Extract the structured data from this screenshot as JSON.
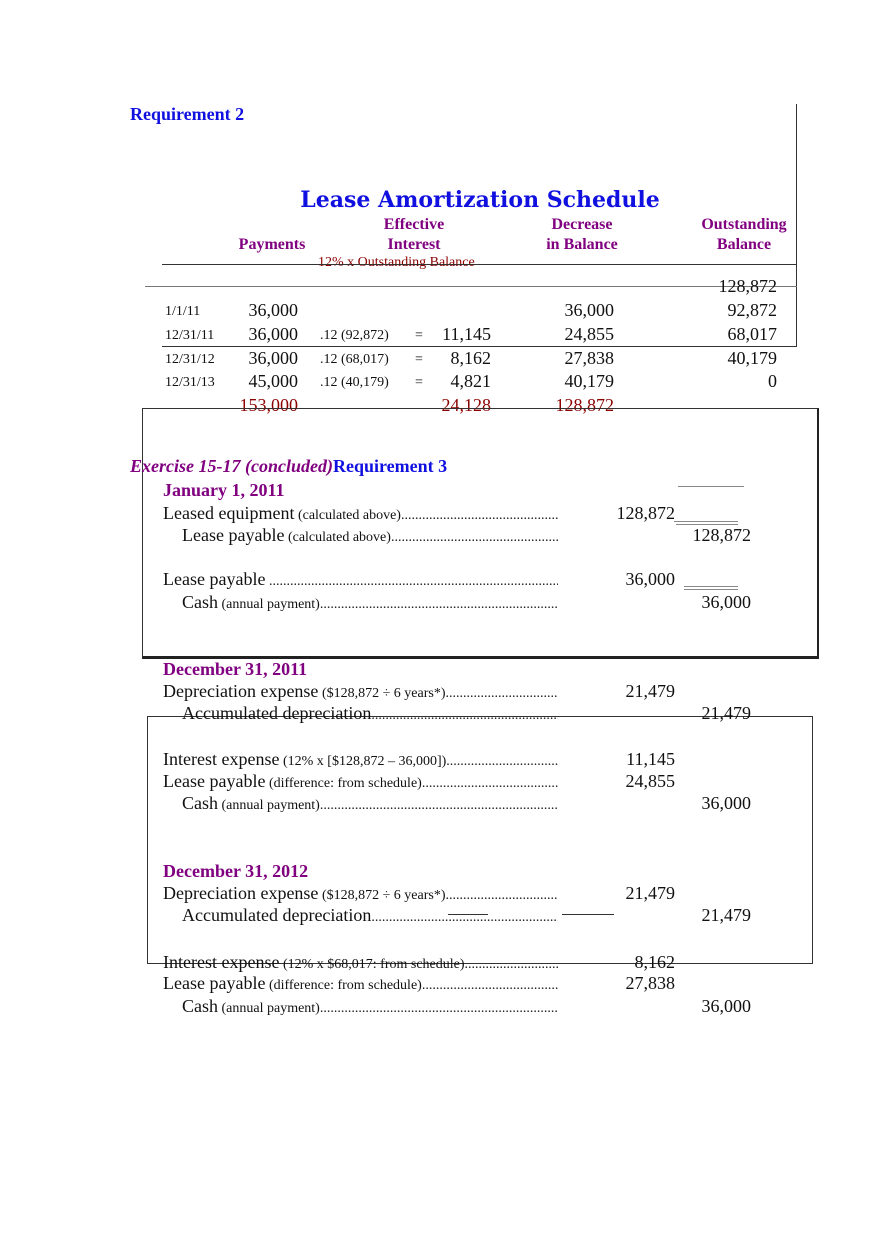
{
  "requirement2": "Requirement 2",
  "schedule": {
    "title": "Lease Amortization Schedule",
    "headers": {
      "payments": "Payments",
      "interest_1": "Effective",
      "interest_2": "Interest",
      "decrease_1": "Decrease",
      "decrease_2": "in Balance",
      "balance_1": "Outstanding",
      "balance_2": "Balance"
    },
    "interest_note": "12% x Outstanding Balance",
    "opening_balance": "128,872",
    "rows": [
      {
        "date": "1/1/11",
        "payment": "36,000",
        "formula": "",
        "eq": "",
        "interest": "",
        "decrease": "36,000",
        "balance": "92,872"
      },
      {
        "date": "12/31/11",
        "payment": "36,000",
        "formula": ".12 (92,872)",
        "eq": "=",
        "interest": "11,145",
        "decrease": "24,855",
        "balance": "68,017"
      },
      {
        "date": "12/31/12",
        "payment": "36,000",
        "formula": ".12 (68,017)",
        "eq": "=",
        "interest": "8,162",
        "decrease": "27,838",
        "balance": "40,179"
      },
      {
        "date": "12/31/13",
        "payment": "45,000",
        "formula": ".12 (40,179)",
        "eq": "=",
        "interest": "4,821",
        "decrease": "40,179",
        "balance": "0"
      }
    ],
    "totals": {
      "payment": "153,000",
      "interest": "24,128",
      "decrease": "128,872"
    }
  },
  "exercise_label": "Exercise 15-17 (concluded)",
  "requirement3": "Requirement 3",
  "journal": {
    "jan2011": {
      "date": "January 1, 2011",
      "entries": [
        {
          "account": "Leased equipment",
          "note": " (calculated above)",
          "debit": "128,872",
          "credit": ""
        },
        {
          "account": "Lease payable",
          "note": " (calculated above)",
          "debit": "",
          "credit": "128,872"
        },
        {
          "account": "Lease payable",
          "note": " ",
          "debit": "36,000",
          "credit": ""
        },
        {
          "account": "Cash",
          "note": " (annual payment)",
          "debit": "",
          "credit": "36,000"
        }
      ]
    },
    "dec2011": {
      "date": "December 31, 2011",
      "entries": [
        {
          "account": "Depreciation expense",
          "note": " ($128,872 ÷ 6 years*)",
          "debit": "21,479",
          "credit": ""
        },
        {
          "account": "Accumulated depreciation",
          "note": "",
          "debit": "",
          "credit": "21,479"
        },
        {
          "account": "Interest expense",
          "note": " (12% x [$128,872 – 36,000])",
          "debit": "11,145",
          "credit": ""
        },
        {
          "account": "Lease payable",
          "note": " (difference: from schedule)",
          "debit": "24,855",
          "credit": ""
        },
        {
          "account": "Cash",
          "note": " (annual payment)",
          "debit": "",
          "credit": "36,000"
        }
      ]
    },
    "dec2012": {
      "date": "December 31, 2012",
      "entries": [
        {
          "account": "Depreciation expense",
          "note": " ($128,872 ÷ 6 years*)",
          "debit": "21,479",
          "credit": ""
        },
        {
          "account": "Accumulated depreciation",
          "note": "",
          "debit": "",
          "credit": "21,479"
        },
        {
          "account": "Interest expense",
          "note": " (12% x $68,017: from schedule)",
          "debit": "8,162",
          "credit": ""
        },
        {
          "account": "Lease payable",
          "note": " (difference: from schedule)",
          "debit": "27,838",
          "credit": ""
        },
        {
          "account": "Cash",
          "note": " (annual payment)",
          "debit": "",
          "credit": "36,000"
        }
      ]
    }
  }
}
